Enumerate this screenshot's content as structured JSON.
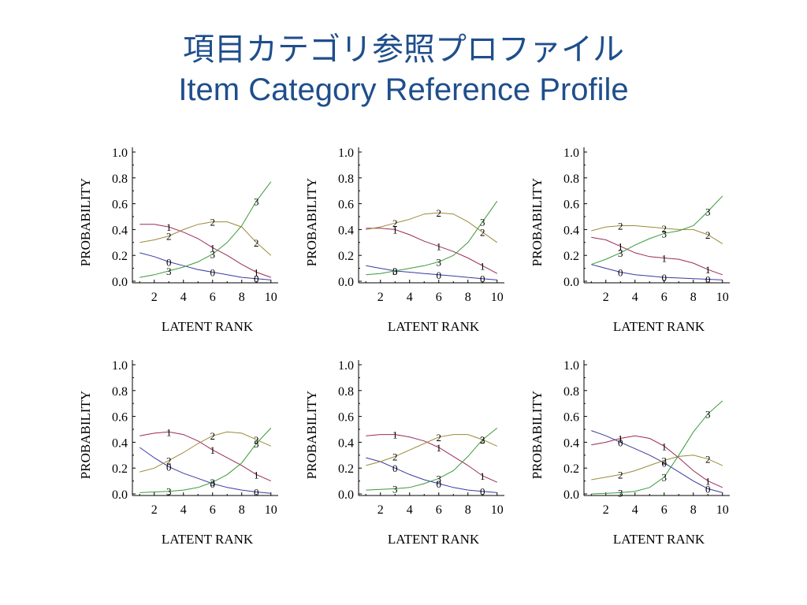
{
  "title": {
    "line1": "項目カテゴリ参照プロファイル",
    "line2": "Item Category Reference Profile"
  },
  "series_colors": {
    "0": "#3a3aa0",
    "1": "#9c2a5a",
    "2": "#9c8a3a",
    "3": "#3a9a3a"
  },
  "chart_data": [
    {
      "type": "line",
      "xlabel": "LATENT RANK",
      "ylabel": "PROBABILITY",
      "xlim": [
        0.5,
        10.5
      ],
      "ylim": [
        0,
        1
      ],
      "xticks": [
        2,
        4,
        6,
        8,
        10
      ],
      "yticks": [
        "0.0",
        "0.2",
        "0.4",
        "0.6",
        "0.8",
        "1.0"
      ],
      "x": [
        1,
        2,
        3,
        4,
        5,
        6,
        7,
        8,
        9,
        10
      ],
      "series": [
        {
          "name": "0",
          "values": [
            0.22,
            0.19,
            0.15,
            0.12,
            0.09,
            0.07,
            0.05,
            0.03,
            0.02,
            0.01
          ],
          "label_x": [
            3,
            6,
            9
          ],
          "label_y": [
            0.15,
            0.07,
            0.02
          ]
        },
        {
          "name": "1",
          "values": [
            0.44,
            0.44,
            0.42,
            0.38,
            0.33,
            0.26,
            0.2,
            0.13,
            0.07,
            0.03
          ],
          "label_x": [
            3,
            6,
            9
          ],
          "label_y": [
            0.42,
            0.26,
            0.07
          ]
        },
        {
          "name": "2",
          "values": [
            0.3,
            0.32,
            0.35,
            0.4,
            0.44,
            0.46,
            0.46,
            0.42,
            0.3,
            0.2
          ],
          "label_x": [
            3,
            6,
            9
          ],
          "label_y": [
            0.35,
            0.46,
            0.3
          ]
        },
        {
          "name": "3",
          "values": [
            0.03,
            0.05,
            0.08,
            0.11,
            0.15,
            0.21,
            0.3,
            0.43,
            0.62,
            0.77
          ],
          "label_x": [
            3,
            6,
            9
          ],
          "label_y": [
            0.08,
            0.21,
            0.62
          ]
        }
      ]
    },
    {
      "type": "line",
      "xlabel": "LATENT RANK",
      "ylabel": "PROBABILITY",
      "xlim": [
        0.5,
        10.5
      ],
      "ylim": [
        0,
        1
      ],
      "xticks": [
        2,
        4,
        6,
        8,
        10
      ],
      "yticks": [
        "0.0",
        "0.2",
        "0.4",
        "0.6",
        "0.8",
        "1.0"
      ],
      "x": [
        1,
        2,
        3,
        4,
        5,
        6,
        7,
        8,
        9,
        10
      ],
      "series": [
        {
          "name": "0",
          "values": [
            0.12,
            0.1,
            0.08,
            0.07,
            0.06,
            0.05,
            0.04,
            0.03,
            0.02,
            0.01
          ],
          "label_x": [
            3,
            6,
            9
          ],
          "label_y": [
            0.08,
            0.05,
            0.02
          ]
        },
        {
          "name": "1",
          "values": [
            0.41,
            0.41,
            0.4,
            0.36,
            0.31,
            0.27,
            0.23,
            0.18,
            0.12,
            0.06
          ],
          "label_x": [
            3,
            6,
            9
          ],
          "label_y": [
            0.4,
            0.27,
            0.12
          ]
        },
        {
          "name": "2",
          "values": [
            0.4,
            0.42,
            0.45,
            0.48,
            0.52,
            0.53,
            0.52,
            0.46,
            0.38,
            0.3
          ],
          "label_x": [
            3,
            6,
            9
          ],
          "label_y": [
            0.45,
            0.53,
            0.38
          ]
        },
        {
          "name": "3",
          "values": [
            0.05,
            0.06,
            0.08,
            0.1,
            0.12,
            0.15,
            0.2,
            0.3,
            0.46,
            0.62
          ],
          "label_x": [
            3,
            6,
            9
          ],
          "label_y": [
            0.08,
            0.15,
            0.46
          ]
        }
      ]
    },
    {
      "type": "line",
      "xlabel": "LATENT RANK",
      "ylabel": "PROBABILITY",
      "xlim": [
        0.5,
        10.5
      ],
      "ylim": [
        0,
        1
      ],
      "xticks": [
        2,
        4,
        6,
        8,
        10
      ],
      "yticks": [
        "0.0",
        "0.2",
        "0.4",
        "0.6",
        "0.8",
        "1.0"
      ],
      "x": [
        1,
        2,
        3,
        4,
        5,
        6,
        7,
        8,
        9,
        10
      ],
      "series": [
        {
          "name": "0",
          "values": [
            0.13,
            0.1,
            0.07,
            0.05,
            0.04,
            0.03,
            0.025,
            0.02,
            0.015,
            0.01
          ],
          "label_x": [
            3,
            6,
            9
          ],
          "label_y": [
            0.07,
            0.03,
            0.015
          ]
        },
        {
          "name": "1",
          "values": [
            0.34,
            0.32,
            0.27,
            0.22,
            0.19,
            0.18,
            0.17,
            0.14,
            0.09,
            0.05
          ],
          "label_x": [
            3,
            6,
            9
          ],
          "label_y": [
            0.27,
            0.18,
            0.09
          ]
        },
        {
          "name": "2",
          "values": [
            0.39,
            0.42,
            0.43,
            0.43,
            0.42,
            0.41,
            0.4,
            0.4,
            0.36,
            0.29
          ],
          "label_x": [
            3,
            6,
            9
          ],
          "label_y": [
            0.43,
            0.41,
            0.36
          ]
        },
        {
          "name": "3",
          "values": [
            0.13,
            0.17,
            0.22,
            0.28,
            0.33,
            0.37,
            0.39,
            0.43,
            0.54,
            0.66
          ],
          "label_x": [
            3,
            6,
            9
          ],
          "label_y": [
            0.22,
            0.37,
            0.54
          ]
        }
      ]
    },
    {
      "type": "line",
      "xlabel": "LATENT RANK",
      "ylabel": "PROBABILITY",
      "xlim": [
        0.5,
        10.5
      ],
      "ylim": [
        0,
        1
      ],
      "xticks": [
        2,
        4,
        6,
        8,
        10
      ],
      "yticks": [
        "0.0",
        "0.2",
        "0.4",
        "0.6",
        "0.8",
        "1.0"
      ],
      "x": [
        1,
        2,
        3,
        4,
        5,
        6,
        7,
        8,
        9,
        10
      ],
      "series": [
        {
          "name": "0",
          "values": [
            0.36,
            0.28,
            0.21,
            0.16,
            0.12,
            0.08,
            0.05,
            0.03,
            0.015,
            0.005
          ],
          "label_x": [
            3,
            6,
            9
          ],
          "label_y": [
            0.21,
            0.08,
            0.015
          ]
        },
        {
          "name": "1",
          "values": [
            0.45,
            0.47,
            0.48,
            0.46,
            0.41,
            0.34,
            0.28,
            0.22,
            0.15,
            0.1
          ],
          "label_x": [
            3,
            6,
            9
          ],
          "label_y": [
            0.48,
            0.34,
            0.15
          ]
        },
        {
          "name": "2",
          "values": [
            0.17,
            0.2,
            0.26,
            0.32,
            0.39,
            0.45,
            0.48,
            0.47,
            0.42,
            0.37
          ],
          "label_x": [
            3,
            6,
            9
          ],
          "label_y": [
            0.26,
            0.45,
            0.42
          ]
        },
        {
          "name": "3",
          "values": [
            0.01,
            0.015,
            0.02,
            0.03,
            0.05,
            0.09,
            0.15,
            0.24,
            0.39,
            0.51
          ],
          "label_x": [
            3,
            6,
            9
          ],
          "label_y": [
            0.02,
            0.09,
            0.39
          ]
        }
      ]
    },
    {
      "type": "line",
      "xlabel": "LATENT RANK",
      "ylabel": "PROBABILITY",
      "xlim": [
        0.5,
        10.5
      ],
      "ylim": [
        0,
        1
      ],
      "xticks": [
        2,
        4,
        6,
        8,
        10
      ],
      "yticks": [
        "0.0",
        "0.2",
        "0.4",
        "0.6",
        "0.8",
        "1.0"
      ],
      "x": [
        1,
        2,
        3,
        4,
        5,
        6,
        7,
        8,
        9,
        10
      ],
      "series": [
        {
          "name": "0",
          "values": [
            0.28,
            0.25,
            0.2,
            0.15,
            0.11,
            0.08,
            0.05,
            0.03,
            0.02,
            0.01
          ],
          "label_x": [
            3,
            6,
            9
          ],
          "label_y": [
            0.2,
            0.08,
            0.02
          ]
        },
        {
          "name": "1",
          "values": [
            0.45,
            0.46,
            0.46,
            0.44,
            0.41,
            0.36,
            0.29,
            0.22,
            0.14,
            0.09
          ],
          "label_x": [
            3,
            6,
            9
          ],
          "label_y": [
            0.46,
            0.36,
            0.14
          ]
        },
        {
          "name": "2",
          "values": [
            0.22,
            0.25,
            0.29,
            0.34,
            0.39,
            0.44,
            0.46,
            0.46,
            0.42,
            0.37
          ],
          "label_x": [
            3,
            6,
            9
          ],
          "label_y": [
            0.29,
            0.44,
            0.42
          ]
        },
        {
          "name": "3",
          "values": [
            0.03,
            0.035,
            0.04,
            0.05,
            0.08,
            0.12,
            0.18,
            0.29,
            0.42,
            0.51
          ],
          "label_x": [
            3,
            6,
            9
          ],
          "label_y": [
            0.04,
            0.12,
            0.42
          ]
        }
      ]
    },
    {
      "type": "line",
      "xlabel": "LATENT RANK",
      "ylabel": "PROBABILITY",
      "xlim": [
        0.5,
        10.5
      ],
      "ylim": [
        0,
        1
      ],
      "xticks": [
        2,
        4,
        6,
        8,
        10
      ],
      "yticks": [
        "0.0",
        "0.2",
        "0.4",
        "0.6",
        "0.8",
        "1.0"
      ],
      "x": [
        1,
        2,
        3,
        4,
        5,
        6,
        7,
        8,
        9,
        10
      ],
      "series": [
        {
          "name": "0",
          "values": [
            0.49,
            0.45,
            0.4,
            0.35,
            0.3,
            0.24,
            0.17,
            0.1,
            0.04,
            0.01
          ],
          "label_x": [
            3,
            6,
            9
          ],
          "label_y": [
            0.4,
            0.24,
            0.04
          ]
        },
        {
          "name": "1",
          "values": [
            0.38,
            0.4,
            0.43,
            0.45,
            0.43,
            0.37,
            0.28,
            0.18,
            0.1,
            0.05
          ],
          "label_x": [
            3,
            6,
            9
          ],
          "label_y": [
            0.43,
            0.37,
            0.1
          ]
        },
        {
          "name": "2",
          "values": [
            0.11,
            0.13,
            0.15,
            0.18,
            0.22,
            0.26,
            0.29,
            0.3,
            0.27,
            0.22
          ],
          "label_x": [
            3,
            6,
            9
          ],
          "label_y": [
            0.15,
            0.26,
            0.27
          ]
        },
        {
          "name": "3",
          "values": [
            0.0,
            0.005,
            0.01,
            0.02,
            0.05,
            0.13,
            0.3,
            0.48,
            0.62,
            0.72
          ],
          "label_x": [
            3,
            6,
            9
          ],
          "label_y": [
            0.01,
            0.13,
            0.62
          ]
        }
      ]
    }
  ]
}
